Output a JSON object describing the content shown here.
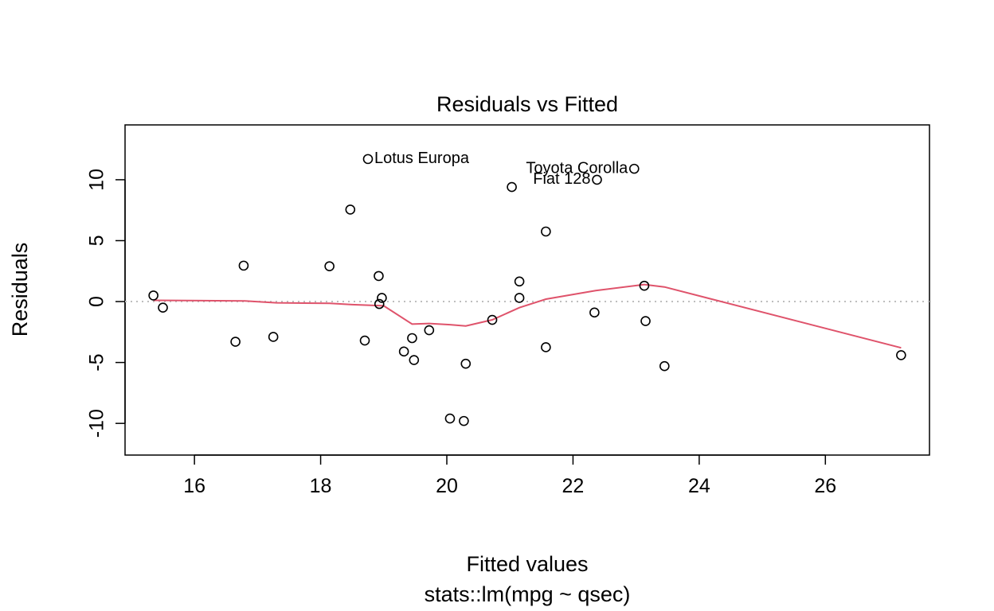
{
  "chart_data": {
    "type": "scatter",
    "title": "Residuals vs Fitted",
    "xlabel": "Fitted values",
    "ylabel": "Residuals",
    "subtitle": "stats::lm(mpg ~ qsec)",
    "xlim": [
      14.9,
      27.65
    ],
    "ylim": [
      -12.6,
      14.5
    ],
    "xticks": [
      16,
      18,
      20,
      22,
      24,
      26
    ],
    "yticks": [
      -10,
      -5,
      0,
      5,
      10
    ],
    "grid": false,
    "reference_line": 0,
    "points": [
      {
        "x": 15.35,
        "y": 0.5
      },
      {
        "x": 15.5,
        "y": -0.5
      },
      {
        "x": 16.65,
        "y": -3.3
      },
      {
        "x": 16.78,
        "y": 2.95
      },
      {
        "x": 17.25,
        "y": -2.9
      },
      {
        "x": 18.14,
        "y": 2.9
      },
      {
        "x": 18.47,
        "y": 7.55
      },
      {
        "x": 18.7,
        "y": -3.2
      },
      {
        "x": 18.75,
        "y": 11.7,
        "label": "Lotus Europa"
      },
      {
        "x": 18.92,
        "y": 2.1
      },
      {
        "x": 18.93,
        "y": -0.2
      },
      {
        "x": 18.97,
        "y": 0.3
      },
      {
        "x": 19.32,
        "y": -4.1
      },
      {
        "x": 19.45,
        "y": -3.0
      },
      {
        "x": 19.48,
        "y": -4.8
      },
      {
        "x": 19.72,
        "y": -2.35
      },
      {
        "x": 20.05,
        "y": -9.6
      },
      {
        "x": 20.27,
        "y": -9.8
      },
      {
        "x": 20.3,
        "y": -5.1
      },
      {
        "x": 20.72,
        "y": -1.5
      },
      {
        "x": 21.03,
        "y": 9.4
      },
      {
        "x": 21.15,
        "y": 1.65
      },
      {
        "x": 21.15,
        "y": 0.3
      },
      {
        "x": 21.57,
        "y": 5.75
      },
      {
        "x": 21.57,
        "y": -3.75
      },
      {
        "x": 22.34,
        "y": -0.9
      },
      {
        "x": 22.38,
        "y": 10.0,
        "label": "Fiat 128"
      },
      {
        "x": 22.97,
        "y": 10.9,
        "label": "Toyota Corolla"
      },
      {
        "x": 23.13,
        "y": 1.3
      },
      {
        "x": 23.15,
        "y": -1.6
      },
      {
        "x": 23.45,
        "y": -5.3
      },
      {
        "x": 27.2,
        "y": -4.4
      }
    ],
    "smoother": [
      {
        "x": 15.35,
        "y": 0.1
      },
      {
        "x": 16.8,
        "y": 0.05
      },
      {
        "x": 17.3,
        "y": -0.1
      },
      {
        "x": 18.14,
        "y": -0.15
      },
      {
        "x": 18.5,
        "y": -0.25
      },
      {
        "x": 19.0,
        "y": -0.35
      },
      {
        "x": 19.45,
        "y": -1.85
      },
      {
        "x": 19.72,
        "y": -1.8
      },
      {
        "x": 20.05,
        "y": -1.9
      },
      {
        "x": 20.3,
        "y": -2.0
      },
      {
        "x": 20.72,
        "y": -1.5
      },
      {
        "x": 21.15,
        "y": -0.5
      },
      {
        "x": 21.57,
        "y": 0.2
      },
      {
        "x": 22.36,
        "y": 0.9
      },
      {
        "x": 23.13,
        "y": 1.4
      },
      {
        "x": 23.45,
        "y": 1.2
      },
      {
        "x": 27.2,
        "y": -3.8
      }
    ],
    "colors": {
      "points": "#000000",
      "smoother": "#DF536B",
      "reference_line": "#BEBEBE"
    }
  }
}
